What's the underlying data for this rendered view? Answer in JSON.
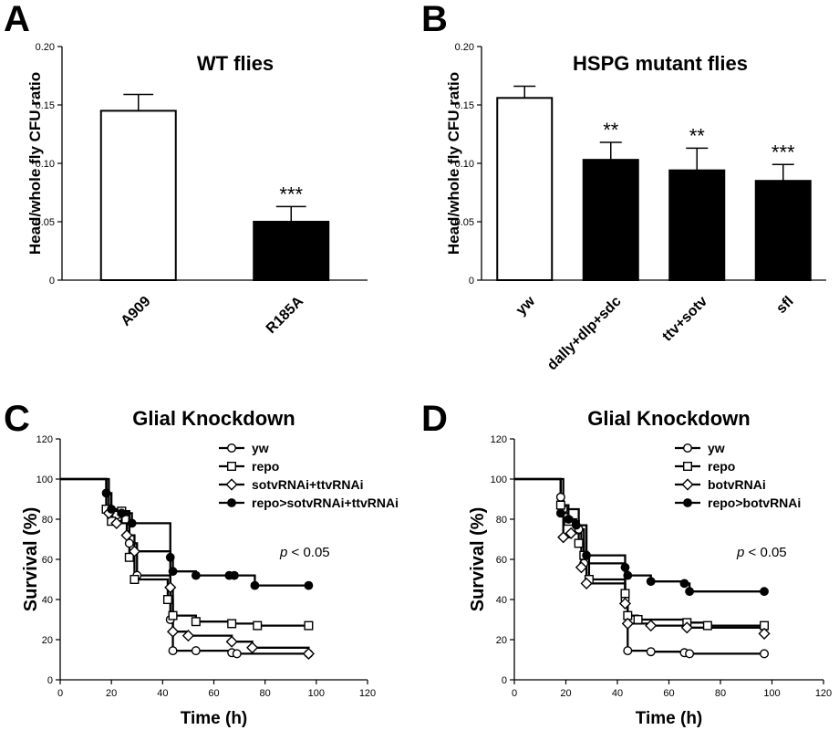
{
  "chart_data": [
    {
      "panel": "A",
      "type": "bar",
      "title": "WT flies",
      "ylabel": "Head/whole fly CFU ratio",
      "xlabel": "",
      "ylim": [
        0,
        0.2
      ],
      "yticks": [
        "0",
        "0.05",
        "0.10",
        "0.15",
        "0.20"
      ],
      "categories": [
        "A909",
        "R185A"
      ],
      "values": [
        0.145,
        0.05
      ],
      "errors": [
        0.014,
        0.013
      ],
      "fills": [
        "white",
        "black"
      ],
      "annotations": [
        "",
        "***"
      ]
    },
    {
      "panel": "B",
      "type": "bar",
      "title": "HSPG mutant flies",
      "ylabel": "Head/whole fly CFU ratio",
      "xlabel": "",
      "ylim": [
        0,
        0.2
      ],
      "yticks": [
        "0",
        "0.05",
        "0.10",
        "0.15",
        "0.20"
      ],
      "categories": [
        "yw",
        "dally+dlp+sdc",
        "ttv+sotv",
        "sfl"
      ],
      "values": [
        0.156,
        0.103,
        0.094,
        0.085
      ],
      "errors": [
        0.01,
        0.015,
        0.019,
        0.014
      ],
      "fills": [
        "white",
        "black",
        "black",
        "black"
      ],
      "annotations": [
        "",
        "**",
        "**",
        "***"
      ]
    },
    {
      "panel": "C",
      "type": "line",
      "title": "Glial  Knockdown",
      "xlabel": "Time (h)",
      "ylabel": "Survival (%)",
      "xlim": [
        0,
        120
      ],
      "ylim": [
        0,
        120
      ],
      "xticks": [
        "0",
        "20",
        "40",
        "60",
        "80",
        "100",
        "120"
      ],
      "yticks": [
        "0",
        "20",
        "40",
        "60",
        "80",
        "100",
        "120"
      ],
      "p_prefix": "p",
      "p_text": " < 0.05",
      "series": [
        {
          "name": "yw",
          "marker": "circle-open",
          "x": [
            0,
            18,
            22,
            27,
            30,
            43,
            44,
            53,
            67,
            69,
            97
          ],
          "y": [
            100,
            85,
            82,
            68,
            52,
            30,
            14.5,
            14.5,
            13.5,
            13,
            13
          ]
        },
        {
          "name": "repo",
          "marker": "square-open",
          "x": [
            0,
            18,
            20,
            24,
            27,
            29,
            42,
            44,
            53,
            67,
            77,
            97
          ],
          "y": [
            100,
            85,
            79,
            84,
            61,
            50,
            40,
            32,
            29,
            28,
            27,
            27
          ]
        },
        {
          "name": "sotvRNAi+ttvRNAi",
          "marker": "diamond-open",
          "x": [
            0,
            19,
            22,
            26,
            29,
            43,
            44,
            50,
            67,
            75,
            97
          ],
          "y": [
            100,
            83,
            78,
            72,
            64,
            46,
            24,
            22,
            19,
            16,
            13
          ]
        },
        {
          "name": "repo>sotvRNAi+ttvRNAi",
          "marker": "circle-filled",
          "x": [
            0,
            18,
            20,
            24,
            28,
            43,
            44,
            53,
            66,
            68,
            76,
            97
          ],
          "y": [
            100,
            93,
            85,
            83,
            78,
            61,
            54,
            52,
            52,
            52,
            47,
            47
          ]
        }
      ]
    },
    {
      "panel": "D",
      "type": "line",
      "title": "Glial  Knockdown",
      "xlabel": "Time (h)",
      "ylabel": "Survival (%)",
      "xlim": [
        0,
        120
      ],
      "ylim": [
        0,
        120
      ],
      "xticks": [
        "0",
        "20",
        "40",
        "60",
        "80",
        "100",
        "120"
      ],
      "yticks": [
        "0",
        "20",
        "40",
        "60",
        "80",
        "100",
        "120"
      ],
      "p_prefix": "p",
      "p_text": " < 0.05",
      "series": [
        {
          "name": "yw",
          "marker": "circle-open",
          "x": [
            0,
            18,
            19,
            25,
            27,
            43,
            44,
            53,
            66,
            68,
            97
          ],
          "y": [
            100,
            91,
            85,
            75,
            58,
            40,
            14.5,
            14,
            13.5,
            13,
            13
          ]
        },
        {
          "name": "repo",
          "marker": "square-open",
          "x": [
            0,
            18,
            21,
            25,
            27,
            29,
            43,
            44,
            48,
            67,
            75,
            97
          ],
          "y": [
            100,
            87,
            79,
            68,
            62,
            50,
            43,
            32,
            30,
            28.5,
            27,
            27
          ]
        },
        {
          "name": "botvRNAi",
          "marker": "diamond-open",
          "x": [
            0,
            19,
            22,
            26,
            28,
            43,
            44,
            53,
            67,
            97
          ],
          "y": [
            100,
            71,
            73,
            56,
            48,
            38,
            28,
            27,
            26,
            23
          ]
        },
        {
          "name": "repo>botvRNAi",
          "marker": "circle-filled",
          "x": [
            0,
            18,
            21,
            24,
            28,
            43,
            44,
            53,
            66,
            68,
            97
          ],
          "y": [
            100,
            83,
            80,
            77,
            62,
            56,
            52,
            49,
            48,
            44,
            44
          ]
        }
      ]
    }
  ],
  "panels": {
    "A": {
      "letter": "A"
    },
    "B": {
      "letter": "B"
    },
    "C": {
      "letter": "C"
    },
    "D": {
      "letter": "D"
    }
  }
}
